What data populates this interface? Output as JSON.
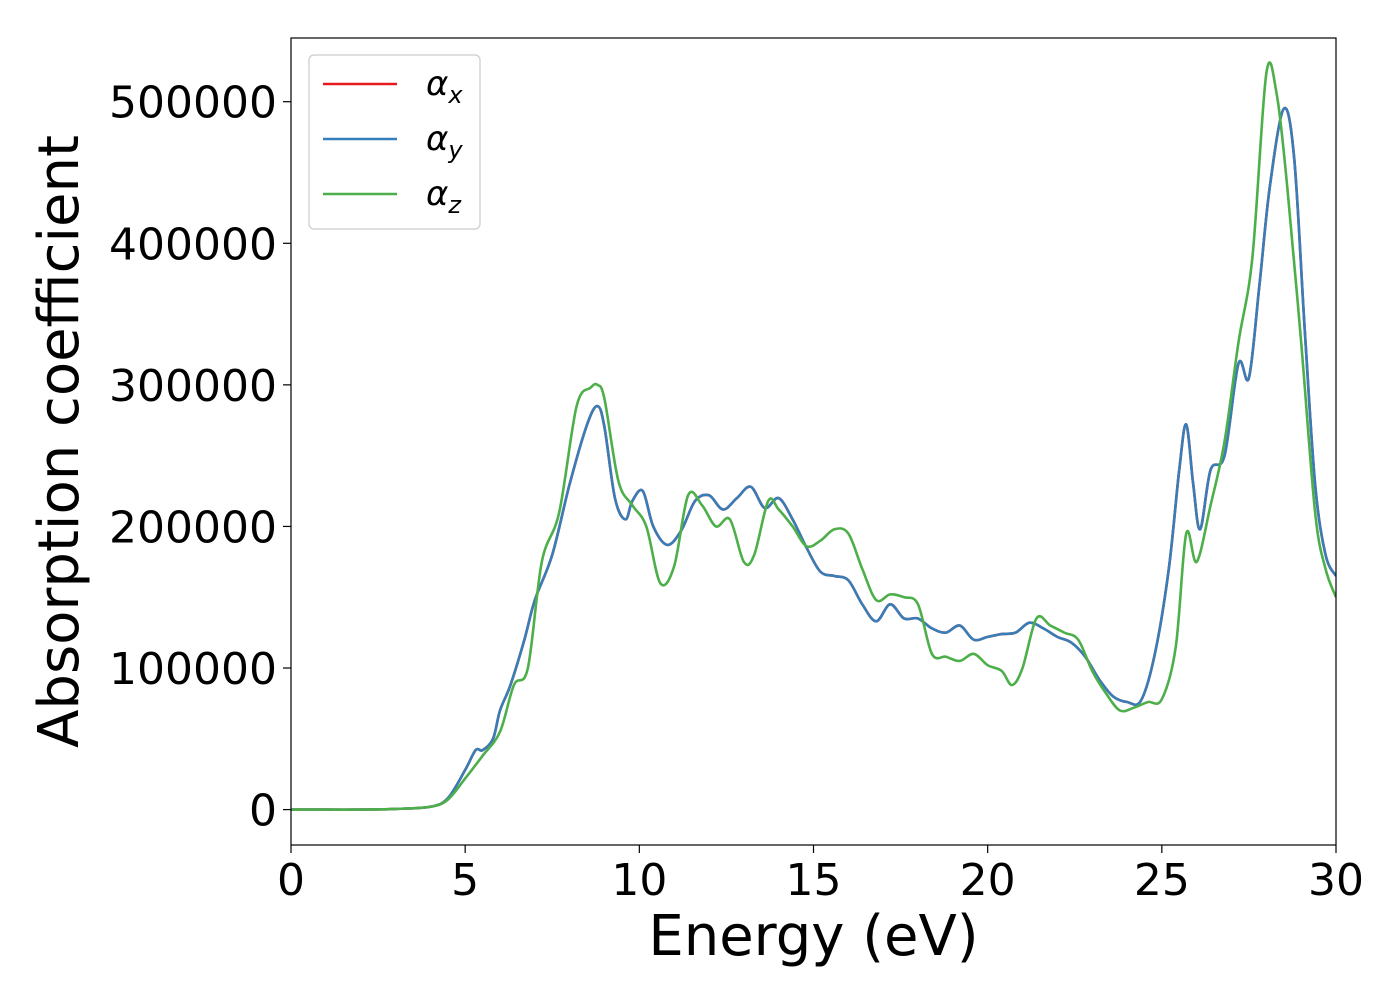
{
  "chart_data": {
    "type": "line",
    "xlabel": "Energy (eV)",
    "ylabel": "Absorption coefficient",
    "xlim": [
      0,
      30
    ],
    "ylim": [
      -25000,
      545000
    ],
    "xticks": [
      "0",
      "5",
      "10",
      "15",
      "20",
      "25",
      "30"
    ],
    "yticks": [
      "0",
      "100000",
      "200000",
      "300000",
      "400000",
      "500000"
    ],
    "grid": false,
    "legend_position": "top-left",
    "series": [
      {
        "name": "αx",
        "symbol": "α",
        "sub": "x",
        "color": "#e41a1c",
        "x": [
          0,
          1,
          2,
          3,
          4,
          4.5,
          5,
          5.3,
          5.5,
          5.8,
          6,
          6.3,
          6.7,
          7,
          7.5,
          8,
          8.5,
          8.8,
          9,
          9.3,
          9.6,
          9.8,
          10.1,
          10.4,
          10.8,
          11.2,
          11.6,
          12,
          12.4,
          12.8,
          13.2,
          13.6,
          14,
          14.4,
          14.8,
          15.2,
          15.6,
          16,
          16.4,
          16.8,
          17.2,
          17.6,
          18,
          18.4,
          18.8,
          19.2,
          19.6,
          20,
          20.4,
          20.8,
          21.2,
          21.6,
          22,
          22.4,
          22.8,
          23.2,
          23.6,
          24,
          24.4,
          24.8,
          25.2,
          25.5,
          25.7,
          25.9,
          26.1,
          26.4,
          26.8,
          27.2,
          27.5,
          27.8,
          28.1,
          28.5,
          28.8,
          29.1,
          29.4,
          29.7,
          30
        ],
        "values": [
          0,
          0,
          0,
          500,
          2000,
          8000,
          28000,
          42000,
          42000,
          50000,
          70000,
          88000,
          120000,
          148000,
          180000,
          230000,
          272000,
          285000,
          270000,
          220000,
          205000,
          218000,
          225000,
          200000,
          187000,
          197000,
          218000,
          222000,
          212000,
          220000,
          228000,
          213000,
          220000,
          205000,
          185000,
          168000,
          165000,
          162000,
          145000,
          133000,
          145000,
          135000,
          135000,
          128000,
          125000,
          130000,
          120000,
          122000,
          124000,
          125000,
          132000,
          128000,
          122000,
          118000,
          108000,
          92000,
          80000,
          76000,
          77000,
          110000,
          170000,
          240000,
          272000,
          230000,
          198000,
          240000,
          250000,
          315000,
          305000,
          370000,
          440000,
          495000,
          460000,
          340000,
          230000,
          180000,
          165000
        ]
      },
      {
        "name": "αy",
        "symbol": "α",
        "sub": "y",
        "color": "#377eb8",
        "x": [
          0,
          1,
          2,
          3,
          4,
          4.5,
          5,
          5.3,
          5.5,
          5.8,
          6,
          6.3,
          6.7,
          7,
          7.5,
          8,
          8.5,
          8.8,
          9,
          9.3,
          9.6,
          9.8,
          10.1,
          10.4,
          10.8,
          11.2,
          11.6,
          12,
          12.4,
          12.8,
          13.2,
          13.6,
          14,
          14.4,
          14.8,
          15.2,
          15.6,
          16,
          16.4,
          16.8,
          17.2,
          17.6,
          18,
          18.4,
          18.8,
          19.2,
          19.6,
          20,
          20.4,
          20.8,
          21.2,
          21.6,
          22,
          22.4,
          22.8,
          23.2,
          23.6,
          24,
          24.4,
          24.8,
          25.2,
          25.5,
          25.7,
          25.9,
          26.1,
          26.4,
          26.8,
          27.2,
          27.5,
          27.8,
          28.1,
          28.5,
          28.8,
          29.1,
          29.4,
          29.7,
          30
        ],
        "values": [
          0,
          0,
          0,
          500,
          2000,
          8000,
          28000,
          42000,
          42000,
          50000,
          70000,
          88000,
          120000,
          148000,
          180000,
          230000,
          272000,
          285000,
          270000,
          220000,
          205000,
          218000,
          225000,
          200000,
          187000,
          197000,
          218000,
          222000,
          212000,
          220000,
          228000,
          213000,
          220000,
          205000,
          185000,
          168000,
          165000,
          162000,
          145000,
          133000,
          145000,
          135000,
          135000,
          128000,
          125000,
          130000,
          120000,
          122000,
          124000,
          125000,
          132000,
          128000,
          122000,
          118000,
          108000,
          92000,
          80000,
          76000,
          77000,
          110000,
          170000,
          240000,
          272000,
          230000,
          198000,
          240000,
          250000,
          315000,
          305000,
          370000,
          440000,
          495000,
          460000,
          340000,
          230000,
          180000,
          165000
        ]
      },
      {
        "name": "αz",
        "symbol": "α",
        "sub": "z",
        "color": "#4daf4a",
        "x": [
          0,
          1,
          2,
          3,
          4,
          4.5,
          5,
          5.5,
          6,
          6.4,
          6.8,
          7.2,
          7.7,
          8.2,
          8.6,
          8.8,
          9,
          9.4,
          9.8,
          10.2,
          10.6,
          11,
          11.4,
          11.8,
          12.2,
          12.6,
          13,
          13.3,
          13.7,
          14,
          14.4,
          14.8,
          15.2,
          15.6,
          16,
          16.4,
          16.8,
          17.2,
          17.6,
          18,
          18.4,
          18.8,
          19.2,
          19.6,
          20,
          20.4,
          20.7,
          21,
          21.4,
          21.8,
          22.2,
          22.6,
          23,
          23.4,
          23.8,
          24.2,
          24.6,
          25,
          25.4,
          25.7,
          26,
          26.4,
          26.8,
          27.2,
          27.6,
          28,
          28.3,
          28.6,
          29,
          29.4,
          29.7,
          30
        ],
        "values": [
          0,
          0,
          0,
          500,
          2000,
          7000,
          22000,
          38000,
          55000,
          88000,
          100000,
          175000,
          210000,
          285000,
          298000,
          300000,
          290000,
          232000,
          215000,
          200000,
          160000,
          172000,
          222000,
          215000,
          200000,
          205000,
          175000,
          180000,
          218000,
          212000,
          200000,
          186000,
          190000,
          198000,
          195000,
          170000,
          148000,
          152000,
          150000,
          145000,
          110000,
          108000,
          105000,
          110000,
          102000,
          98000,
          88000,
          100000,
          135000,
          130000,
          125000,
          120000,
          98000,
          82000,
          70000,
          72000,
          76000,
          78000,
          115000,
          195000,
          175000,
          215000,
          260000,
          330000,
          390000,
          520000,
          505000,
          440000,
          330000,
          210000,
          170000,
          150000
        ]
      }
    ]
  }
}
